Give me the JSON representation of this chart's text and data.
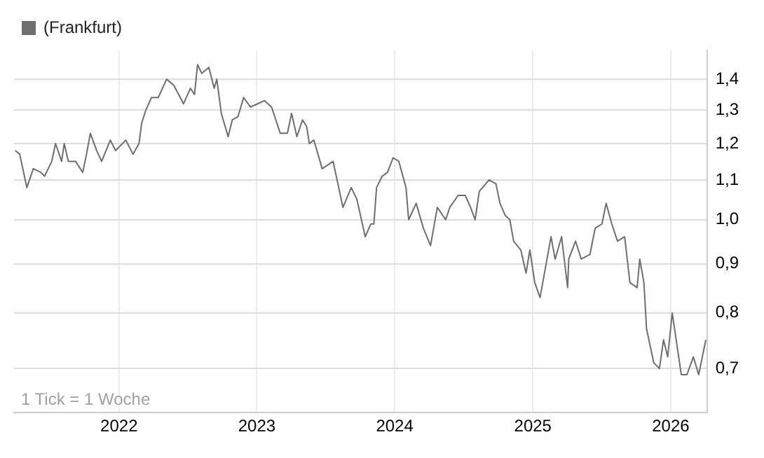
{
  "chart_data": {
    "type": "line",
    "legend": "top left",
    "grid": true,
    "log": "y",
    "marker": "none",
    "line_style": "solid",
    "annotations": [
      "1 Tick = 1 Woche"
    ],
    "xlim": [
      "2021-03-29",
      "2026-04-07"
    ],
    "xticks": [
      "2022",
      "2023",
      "2024",
      "2025",
      "2026"
    ],
    "ylim": [
      0.63,
      1.5
    ],
    "yticks": [
      {
        "value": 0.7,
        "label": "0,7"
      },
      {
        "value": 0.8,
        "label": "0,8"
      },
      {
        "value": 0.9,
        "label": "0,9"
      },
      {
        "value": 1.0,
        "label": "1,0"
      },
      {
        "value": 1.1,
        "label": "1,1"
      },
      {
        "value": 1.2,
        "label": "1,2"
      },
      {
        "value": 1.3,
        "label": "1,3"
      },
      {
        "value": 1.4,
        "label": "1,4"
      }
    ],
    "x": [
      "2021-04-01",
      "2021-04-13",
      "2021-05-02",
      "2021-05-19",
      "2021-06-08",
      "2021-06-18",
      "2021-07-07",
      "2021-07-17",
      "2021-08-02",
      "2021-08-09",
      "2021-08-20",
      "2021-09-08",
      "2021-09-27",
      "2021-10-07",
      "2021-10-17",
      "2021-11-03",
      "2021-11-16",
      "2021-12-09",
      "2021-12-23",
      "2022-01-19",
      "2022-02-07",
      "2022-02-23",
      "2022-03-02",
      "2022-03-13",
      "2022-03-28",
      "2022-04-15",
      "2022-05-07",
      "2022-05-26",
      "2022-06-21",
      "2022-07-09",
      "2022-07-20",
      "2022-07-28",
      "2022-08-08",
      "2022-08-27",
      "2022-09-10",
      "2022-09-17",
      "2022-09-29",
      "2022-10-17",
      "2022-10-28",
      "2022-11-12",
      "2022-11-27",
      "2022-12-15",
      "2023-01-03",
      "2023-01-21",
      "2023-02-09",
      "2023-03-04",
      "2023-03-23",
      "2023-04-03",
      "2023-04-17",
      "2023-05-02",
      "2023-05-13",
      "2023-05-20",
      "2023-06-01",
      "2023-06-23",
      "2023-07-22",
      "2023-08-17",
      "2023-09-08",
      "2023-09-23",
      "2023-10-15",
      "2023-10-30",
      "2023-11-07",
      "2023-11-14",
      "2023-11-29",
      "2023-12-13",
      "2023-12-28",
      "2024-01-12",
      "2024-01-31",
      "2024-02-07",
      "2024-02-27",
      "2024-03-17",
      "2024-04-05",
      "2024-04-23",
      "2024-05-15",
      "2024-05-26",
      "2024-06-17",
      "2024-07-06",
      "2024-07-20",
      "2024-08-01",
      "2024-08-12",
      "2024-09-07",
      "2024-09-25",
      "2024-10-06",
      "2024-10-20",
      "2024-11-01",
      "2024-11-11",
      "2024-11-30",
      "2024-12-14",
      "2024-12-24",
      "2025-01-06",
      "2025-01-20",
      "2025-02-18",
      "2025-03-01",
      "2025-03-18",
      "2025-04-03",
      "2025-04-06",
      "2025-04-24",
      "2025-05-09",
      "2025-06-01",
      "2025-06-15",
      "2025-07-03",
      "2025-07-14",
      "2025-07-29",
      "2025-08-13",
      "2025-09-01",
      "2025-09-15",
      "2025-10-04",
      "2025-10-11",
      "2025-10-22",
      "2025-10-29",
      "2025-11-17",
      "2025-12-02",
      "2025-12-13",
      "2025-12-24",
      "2026-01-05",
      "2026-01-29",
      "2026-02-13",
      "2026-03-02",
      "2026-03-16",
      "2026-04-04"
    ],
    "series": [
      {
        "name": "(Frankfurt)",
        "color": "#6e6e6e",
        "values": [
          1.18,
          1.17,
          1.08,
          1.13,
          1.12,
          1.11,
          1.15,
          1.2,
          1.15,
          1.2,
          1.15,
          1.15,
          1.12,
          1.17,
          1.23,
          1.18,
          1.15,
          1.21,
          1.18,
          1.21,
          1.17,
          1.2,
          1.26,
          1.3,
          1.34,
          1.34,
          1.4,
          1.38,
          1.32,
          1.37,
          1.35,
          1.45,
          1.42,
          1.44,
          1.37,
          1.4,
          1.29,
          1.22,
          1.27,
          1.28,
          1.34,
          1.31,
          1.32,
          1.33,
          1.31,
          1.23,
          1.23,
          1.29,
          1.22,
          1.27,
          1.25,
          1.2,
          1.21,
          1.13,
          1.15,
          1.03,
          1.08,
          1.05,
          0.96,
          0.99,
          0.99,
          1.08,
          1.11,
          1.12,
          1.16,
          1.15,
          1.08,
          1.0,
          1.04,
          0.98,
          0.94,
          1.03,
          1.0,
          1.03,
          1.06,
          1.06,
          1.03,
          1.0,
          1.07,
          1.1,
          1.09,
          1.04,
          1.01,
          1.0,
          0.95,
          0.93,
          0.88,
          0.93,
          0.86,
          0.83,
          0.96,
          0.91,
          0.96,
          0.85,
          0.91,
          0.95,
          0.91,
          0.92,
          0.98,
          0.99,
          1.04,
          0.99,
          0.95,
          0.96,
          0.86,
          0.85,
          0.91,
          0.86,
          0.77,
          0.71,
          0.7,
          0.75,
          0.72,
          0.8,
          0.69,
          0.69,
          0.72,
          0.69,
          0.75
        ]
      }
    ]
  }
}
